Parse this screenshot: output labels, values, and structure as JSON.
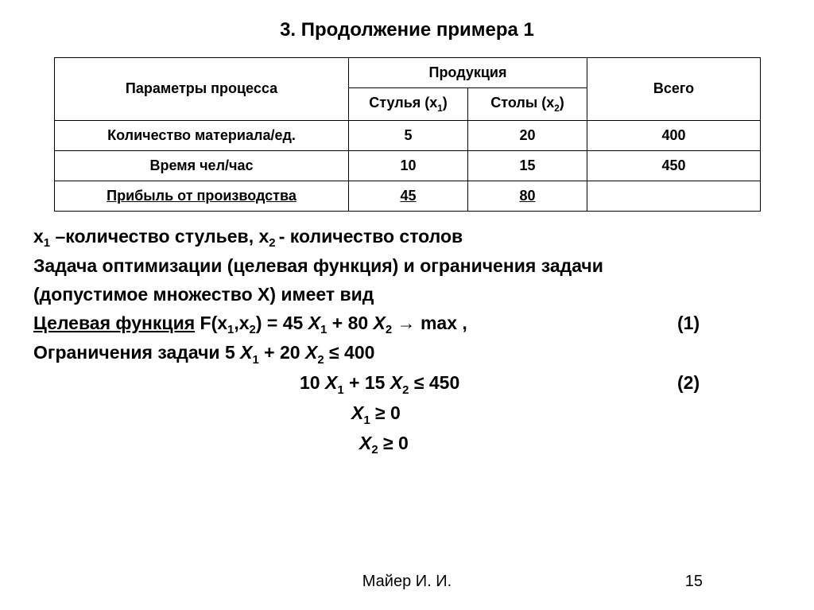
{
  "title": "3. Продолжение примера 1",
  "table": {
    "header": {
      "params": "Параметры процесса",
      "products_group": "Продукция",
      "total": "Всего",
      "chairs_pre": "Стулья (x",
      "chairs_sub": "1",
      "chairs_post": ")",
      "tables_pre": "Столы (x",
      "tables_sub": "2",
      "tables_post": ")"
    },
    "rows": [
      {
        "label": "Количество материала/ед.",
        "underline": false,
        "c1": "5",
        "c2": "20",
        "total": "400"
      },
      {
        "label": "Время чел/час",
        "underline": false,
        "c1": "10",
        "c2": "15",
        "total": "450"
      },
      {
        "label": "Прибыль от производства",
        "underline": true,
        "c1": "45",
        "c2": "80",
        "total": "",
        "underline_vals": true
      }
    ]
  },
  "text": {
    "line1_a": "x",
    "line1_sub1": "1",
    "line1_b": " –количество стульев, x",
    "line1_sub2": "2 ",
    "line1_c": "- количество столов",
    "line2": "Задача оптимизации (целевая функция) и ограничения задачи",
    "line3": "(допустимое множество X) имеет вид",
    "obj_label": "Целевая функция",
    "obj_formula_pre": "F(x",
    "obj_formula_s1": "1",
    "obj_formula_mid1": ",x",
    "obj_formula_s2": "2",
    "obj_formula_mid2": ") = 45 ",
    "obj_X1": "X",
    "obj_X1s": "1",
    "obj_plus": " + 80 ",
    "obj_X2": "X",
    "obj_X2s": "2",
    "obj_tail": "  → max ,",
    "eq1_num": "(1)",
    "cons_label": "Ограничения задачи",
    "cons1_pre": "5 ",
    "cons1_X1": "X",
    "cons1_X1s": "1",
    "cons1_mid": " + 20 ",
    "cons1_X2": "X",
    "cons1_X2s": "2",
    "cons1_tail": " ≤ 400",
    "cons2_pre": "10 ",
    "cons2_X1": "X",
    "cons2_X1s": "1",
    "cons2_mid": " + 15 ",
    "cons2_X2": "X",
    "cons2_X2s": "2",
    "cons2_tail": " ≤ 450",
    "eq2_num": "(2)",
    "cons3_X": "X",
    "cons3_s": "1",
    "cons3_tail": "  ≥ 0",
    "cons4_X": "X",
    "cons4_s": "2",
    "cons4_tail": " ≥ 0"
  },
  "footer": {
    "author": "Майер И. И.",
    "page": "15"
  },
  "style": {
    "font_body": 23,
    "font_table": 18,
    "font_title": 24,
    "font_footer": 20,
    "border_color": "#000000",
    "bg": "#ffffff",
    "fg": "#000000"
  }
}
